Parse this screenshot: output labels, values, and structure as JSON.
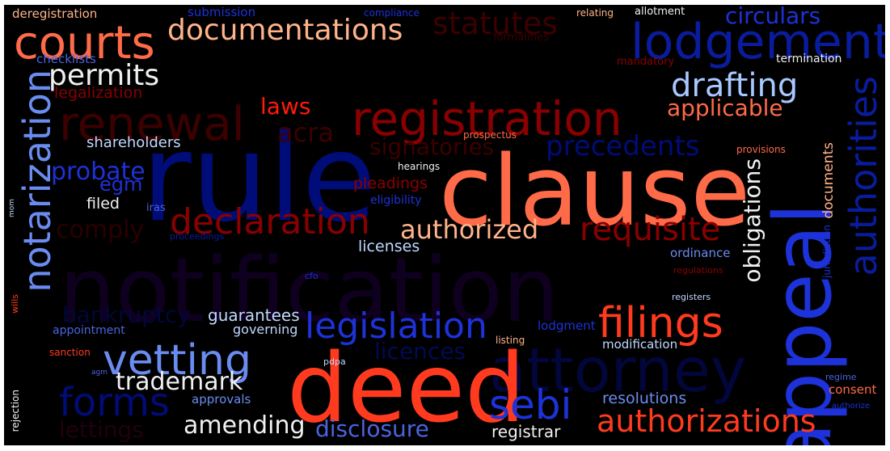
{
  "palette": {
    "background": "#000000",
    "red_bright": "#ff3a1f",
    "orange": "#ff6a48",
    "peach": "#ffb38a",
    "dark_red": "#8a0000",
    "maroon": "#3c0000",
    "navy": "#000c78",
    "blue": "#1d32d8",
    "light_blue": "#6a8cf0",
    "pale_blue": "#c0d8ff",
    "white": "#f0f0f0"
  },
  "words": {
    "clause": "clause",
    "rule": "rule",
    "deed": "deed",
    "notification": "notification",
    "appeal": "appeal",
    "registration": "registration",
    "lodgement": "lodgement",
    "courts": "courts",
    "notarization": "notarization",
    "renewal": "renewal",
    "attorney": "attorney",
    "authorities": "authorities",
    "vetting": "vetting",
    "declaration": "declaration",
    "legislation": "legislation",
    "filings": "filings",
    "authorizations": "authorizations",
    "documentations": "documentations",
    "drafting": "drafting",
    "sebi": "sebi",
    "forms": "forms",
    "requisite": "requisite",
    "statutes": "statutes",
    "permits": "permits",
    "circulars": "circulars",
    "applicable": "applicable",
    "precedents": "precedents",
    "authorized": "authorized",
    "obligations": "obligations",
    "trademark": "trademark",
    "amending": "amending",
    "disclosure": "disclosure",
    "probate": "probate",
    "bankruptcy": "bankruptcy",
    "laws": "laws",
    "acra": "acra",
    "signatories": "signatories",
    "comply": "comply",
    "licences": "licences",
    "resolutions": "resolutions",
    "registrar": "registrar",
    "guarantees": "guarantees",
    "egm": "egm",
    "documents": "documents",
    "shareholders": "shareholders",
    "pleadings": "pleadings",
    "licenses": "licenses",
    "filed": "filed",
    "legalization": "legalization",
    "governing": "governing",
    "lettings": "lettings",
    "appointment": "appointment",
    "modification": "modification",
    "lodgment": "lodgment",
    "approvals": "approvals",
    "ordinance": "ordinance",
    "consent": "consent",
    "checklists": "checklists",
    "deregistration": "deregistration",
    "submission": "submission",
    "compliance": "compliance",
    "relating": "relating",
    "allotment": "allotment",
    "formalities": "formalities",
    "mandatory": "mandatory",
    "termination": "termination",
    "prospectus": "prospectus",
    "hearings": "hearings",
    "eligibility": "eligibility",
    "iras": "iras",
    "provisions": "provisions",
    "proceedings": "proceedings",
    "regulations": "regulations",
    "jurisdiction": "jurisdiction",
    "registers": "registers",
    "cfo": "cfo",
    "listing": "listing",
    "pdpa": "pdpa",
    "agm": "agm",
    "regime": "regime",
    "authorize": "authorize",
    "rejection": "rejection",
    "sanction": "sanction",
    "wills": "wills",
    "mom": "mom"
  }
}
